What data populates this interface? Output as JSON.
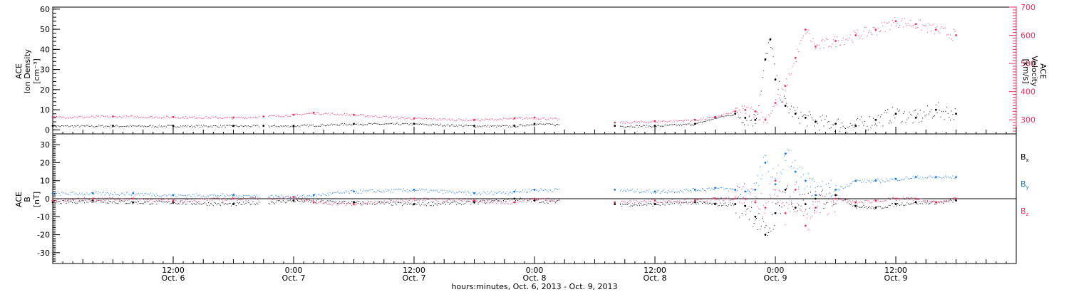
{
  "chart_data": [
    {
      "type": "scatter",
      "panel": "top",
      "ylabel_left": [
        "ACE",
        "Ion Density",
        "[cm⁻³]"
      ],
      "ylabel_right": [
        "ACE",
        "Velocity",
        "[km/s]"
      ],
      "ylim_left": [
        -2,
        61
      ],
      "ylim_right": [
        250,
        700
      ],
      "yticks_left": [
        "0",
        "10",
        "20",
        "30",
        "40",
        "50",
        "60"
      ],
      "yticks_right": [
        "300",
        "400",
        "500",
        "600",
        "700"
      ],
      "series": [
        {
          "axis": "left",
          "color": "#000000",
          "x_hours": [
            0,
            6,
            12,
            18,
            21,
            24,
            30,
            36,
            42,
            46,
            48,
            56,
            60,
            64,
            66,
            68,
            69,
            70,
            71,
            71.5,
            72,
            73,
            74,
            75,
            76,
            78,
            80,
            82,
            84,
            86,
            88,
            90
          ],
          "values": [
            2,
            2,
            2,
            2,
            2,
            2,
            3,
            3,
            2,
            2,
            3,
            2,
            2,
            3,
            6,
            8,
            6,
            5,
            35,
            45,
            25,
            12,
            8,
            6,
            4,
            3,
            2,
            5,
            8,
            6,
            10,
            8
          ]
        },
        {
          "axis": "right",
          "color": "#e8335f",
          "x_hours": [
            0,
            6,
            12,
            18,
            21,
            24,
            26,
            30,
            36,
            42,
            46,
            48,
            56,
            60,
            64,
            66,
            68,
            69,
            70,
            71,
            72,
            73,
            74,
            75,
            76,
            78,
            80,
            82,
            84,
            86,
            88,
            90
          ],
          "values": [
            310,
            312,
            310,
            308,
            312,
            318,
            325,
            318,
            305,
            300,
            305,
            308,
            290,
            295,
            300,
            310,
            330,
            335,
            330,
            300,
            360,
            420,
            520,
            620,
            560,
            580,
            600,
            620,
            650,
            640,
            620,
            600
          ]
        }
      ],
      "data_gaps_hours": [
        [
          20.6,
          21.4
        ],
        [
          50.5,
          56.5
        ]
      ]
    },
    {
      "type": "scatter",
      "panel": "bottom",
      "ylabel": [
        "ACE",
        "B",
        "[nT]"
      ],
      "ylim": [
        -36,
        36
      ],
      "yticks": [
        "-30",
        "-20",
        "-10",
        "0",
        "10",
        "20",
        "30"
      ],
      "legend": [
        "B",
        "B",
        "B"
      ],
      "legend_subscripts": [
        "x",
        "y",
        "z"
      ],
      "legend_placement": "right",
      "series": [
        {
          "color": "#000000",
          "x_hours": [
            0,
            4,
            8,
            12,
            18,
            24,
            30,
            36,
            42,
            46,
            48,
            56,
            60,
            64,
            66,
            68,
            69,
            70,
            71,
            72,
            73,
            74,
            75,
            76,
            78,
            80,
            82,
            84,
            86,
            88,
            90
          ],
          "values": [
            -2,
            -1,
            -2,
            -2,
            -3,
            -1,
            -2,
            -3,
            -2,
            0,
            -1,
            -3,
            -3,
            -2,
            -3,
            -3,
            -4,
            -10,
            -20,
            -8,
            5,
            -5,
            -3,
            0,
            2,
            -4,
            -5,
            -3,
            -2,
            -2,
            -1
          ]
        },
        {
          "color": "#1a78d8",
          "x_hours": [
            0,
            4,
            8,
            12,
            18,
            24,
            26,
            30,
            36,
            42,
            46,
            48,
            56,
            60,
            64,
            66,
            68,
            69,
            70,
            71,
            72,
            73,
            74,
            75,
            76,
            78,
            80,
            82,
            84,
            86,
            88,
            90
          ],
          "values": [
            3,
            3,
            3,
            2,
            2,
            1,
            2,
            4,
            5,
            3,
            4,
            5,
            5,
            4,
            5,
            6,
            5,
            4,
            5,
            20,
            8,
            25,
            15,
            10,
            2,
            5,
            10,
            10,
            11,
            12,
            12,
            12
          ]
        },
        {
          "color": "#e8335f",
          "x_hours": [
            0,
            4,
            8,
            12,
            18,
            24,
            26,
            30,
            36,
            42,
            46,
            48,
            56,
            60,
            64,
            66,
            68,
            69,
            70,
            71,
            72,
            73,
            74,
            75,
            76,
            78,
            80,
            82,
            84,
            86,
            88,
            90
          ],
          "values": [
            -1,
            0,
            0,
            -1,
            0,
            1,
            -2,
            -3,
            0,
            -1,
            -2,
            0,
            -2,
            -1,
            -1,
            0,
            0,
            0,
            -2,
            -5,
            10,
            -8,
            5,
            -15,
            -5,
            0,
            -2,
            -1,
            0,
            0,
            -2,
            0
          ]
        }
      ],
      "data_gaps_hours": [
        [
          20.6,
          21.4
        ],
        [
          50.5,
          56.5
        ]
      ]
    }
  ],
  "x_axis": {
    "range_hours": [
      0,
      96
    ],
    "major_ticks": [
      {
        "hour": 12,
        "time": "12:00",
        "date": "Oct. 6"
      },
      {
        "hour": 24,
        "time": "0:00",
        "date": "Oct. 7"
      },
      {
        "hour": 36,
        "time": "12:00",
        "date": "Oct. 7"
      },
      {
        "hour": 48,
        "time": "0:00",
        "date": "Oct. 8"
      },
      {
        "hour": 60,
        "time": "12:00",
        "date": "Oct. 8"
      },
      {
        "hour": 72,
        "time": "0:00",
        "date": "Oct. 9"
      },
      {
        "hour": 84,
        "time": "12:00",
        "date": "Oct. 9"
      }
    ],
    "xlabel": "hours:minutes, Oct.  6, 2013 - Oct.  9, 2013"
  },
  "colors": {
    "black": "#000000",
    "red": "#e8335f",
    "blue": "#1a78d8"
  }
}
